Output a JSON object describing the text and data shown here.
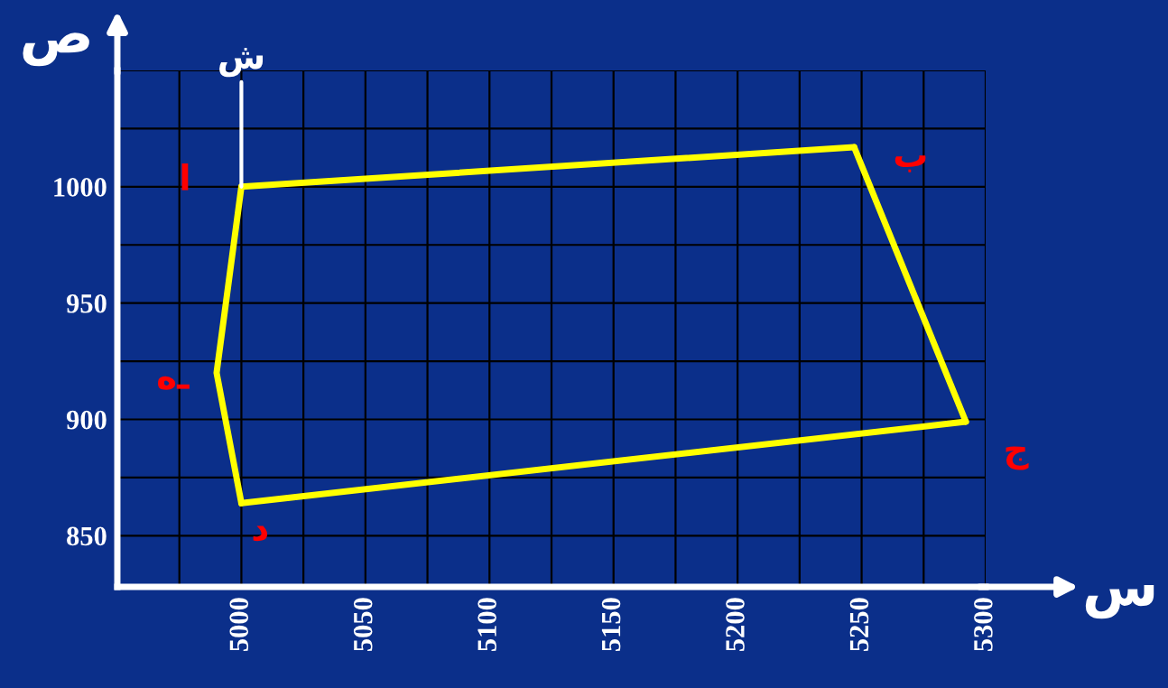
{
  "chart_data": {
    "type": "line",
    "xlabel": "س",
    "ylabel": "ص",
    "series": [
      {
        "x": [
          5000,
          5247
        ],
        "values": [
          1000,
          1017
        ],
        "color": "#ffff00"
      },
      {
        "x": [
          5247,
          5292
        ],
        "values": [
          1017,
          899
        ],
        "color": "#ffff00"
      },
      {
        "x": [
          5000,
          5292
        ],
        "values": [
          864,
          899
        ],
        "color": "#ffff00"
      },
      {
        "x": [
          5000,
          4990,
          5000
        ],
        "values": [
          864,
          920,
          1000
        ],
        "color": "#ffff00"
      },
      {
        "name": "ش",
        "x": [
          5000,
          5000
        ],
        "values": [
          1000,
          1045
        ],
        "color": "#ffffff"
      }
    ],
    "annotations": [
      {
        "text": "ا",
        "x": 5000,
        "y": 1000
      },
      {
        "text": "ب",
        "x": 5247,
        "y": 1017
      },
      {
        "text": "ج",
        "x": 5292,
        "y": 899
      },
      {
        "text": "د",
        "x": 5000,
        "y": 864
      },
      {
        "text": "هـ",
        "x": 4990,
        "y": 920
      }
    ],
    "xlim": [
      4950,
      5300
    ],
    "ylim": [
      828,
      1050
    ],
    "xticks": [
      {
        "value": 4975,
        "label": null
      },
      5000,
      {
        "value": 5025,
        "label": null
      },
      5050,
      {
        "value": 5075,
        "label": null
      },
      5100,
      {
        "value": 5125,
        "label": null
      },
      5150,
      {
        "value": 5175,
        "label": null
      },
      5200,
      {
        "value": 5225,
        "label": null
      },
      5250,
      {
        "value": 5275,
        "label": null
      },
      5300
    ],
    "yticks": [
      850,
      {
        "value": 875,
        "label": null
      },
      900,
      {
        "value": 925,
        "label": null
      },
      950,
      {
        "value": 975,
        "label": null
      },
      1000,
      {
        "value": 1025,
        "label": null
      },
      {
        "value": 1050,
        "label": null
      }
    ],
    "grid": true,
    "marker": "none",
    "line_style": "solid"
  }
}
